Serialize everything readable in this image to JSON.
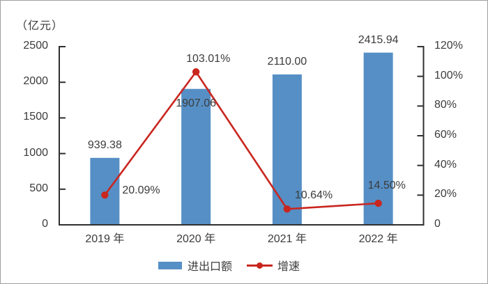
{
  "colors": {
    "bar": "#568fc5",
    "line": "#c9261f",
    "text": "#3b3b3b",
    "axis": "#2f2f2f",
    "border": "#9f9f9f"
  },
  "chart_data": {
    "type": "bar",
    "combo": "bar+line",
    "title": "",
    "categories": [
      "2019 年",
      "2020 年",
      "2021 年",
      "2022 年"
    ],
    "series": [
      {
        "name": "进出口额",
        "type": "bar",
        "axis": "left",
        "values": [
          939.38,
          1907.06,
          2110.0,
          2415.94
        ],
        "value_labels": [
          "939.38",
          "1907.06",
          "2110.00",
          "2415.94"
        ],
        "color": "#568fc5"
      },
      {
        "name": "增速",
        "type": "line",
        "axis": "right",
        "values": [
          20.09,
          103.01,
          10.64,
          14.5
        ],
        "value_labels": [
          "20.09%",
          "103.01%",
          "10.64%",
          "14.50%"
        ],
        "color": "#c9261f"
      }
    ],
    "left_axis": {
      "title": "（亿元）",
      "min": 0,
      "max": 2500,
      "step": 500,
      "tick_labels": [
        "0",
        "500",
        "1000",
        "1500",
        "2000",
        "2500"
      ]
    },
    "right_axis": {
      "min": 0,
      "max": 120,
      "step": 20,
      "tick_labels": [
        "0",
        "20%",
        "40%",
        "60%",
        "80%",
        "100%",
        "120%"
      ]
    },
    "legend_position": "bottom",
    "grid": false
  }
}
